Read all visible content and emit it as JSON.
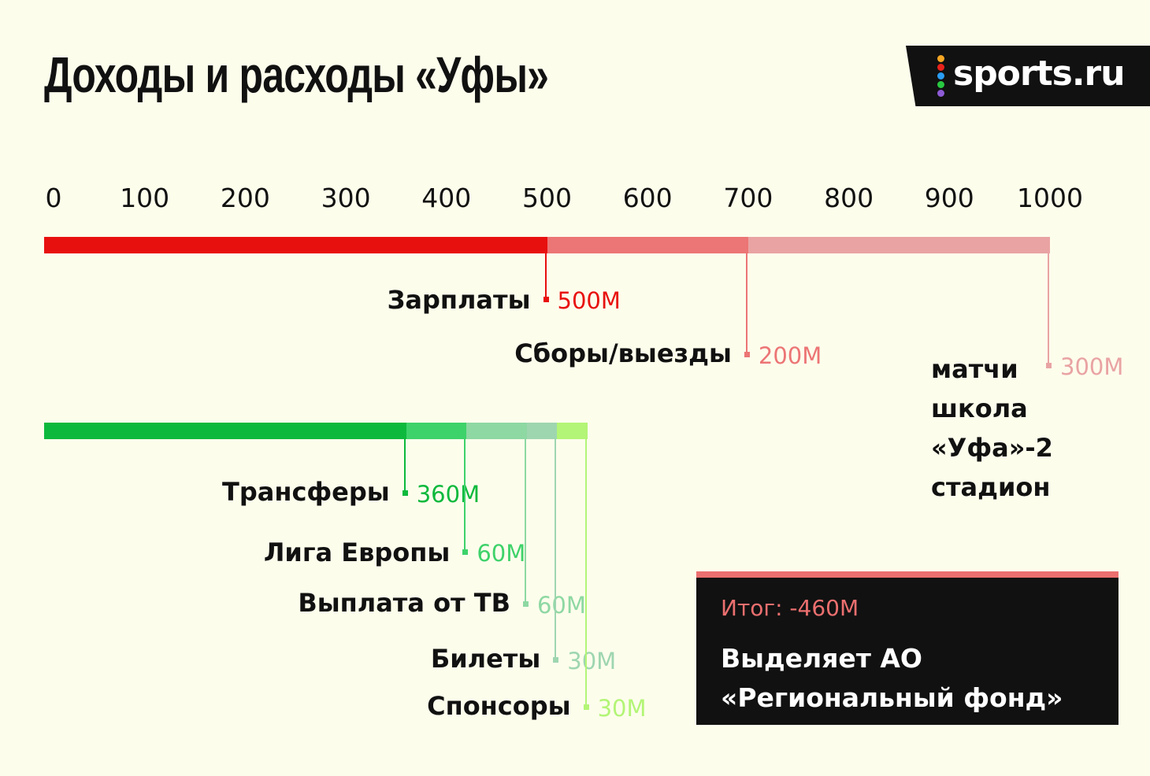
{
  "title": "Доходы и расходы «Уфы»",
  "logo": {
    "text": "sports.ru",
    "dot_colors": [
      "#f5a623",
      "#e8231b",
      "#2a9df4",
      "#28c840",
      "#8e5bd6"
    ]
  },
  "chart_data": {
    "type": "bar",
    "orientation": "horizontal-stacked",
    "xlim": [
      0,
      1000
    ],
    "ticks": [
      "0",
      "100",
      "200",
      "300",
      "400",
      "500",
      "600",
      "700",
      "800",
      "900",
      "1000"
    ],
    "series": [
      {
        "group": "expenses",
        "segments": [
          {
            "label": "Зарплаты",
            "value": 500,
            "value_label": "500M",
            "color": "#e8100f"
          },
          {
            "label": "Сборы/выезды",
            "value": 200,
            "value_label": "200M",
            "color": "#ec7575"
          },
          {
            "label": "матчи\nшкола\n«Уфа»-2\nстадион",
            "value": 300,
            "value_label": "300M",
            "color": "#e9a3a3"
          }
        ]
      },
      {
        "group": "income",
        "segments": [
          {
            "label": "Трансферы",
            "value": 360,
            "value_label": "360M",
            "color": "#0db93d"
          },
          {
            "label": "Лига Европы",
            "value": 60,
            "value_label": "60M",
            "color": "#3ed26a"
          },
          {
            "label": "Выплата от ТВ",
            "value": 60,
            "value_label": "60M",
            "color": "#8ed8a3"
          },
          {
            "label": "Билеты",
            "value": 30,
            "value_label": "30M",
            "color": "#9ed6b0"
          },
          {
            "label": "Спонсоры",
            "value": 30,
            "value_label": "30M",
            "color": "#b3f576"
          }
        ]
      }
    ]
  },
  "summary": {
    "total": "Итог: -460M",
    "text_line1": "Выделяет АО",
    "text_line2": "«Региональный фонд»"
  }
}
